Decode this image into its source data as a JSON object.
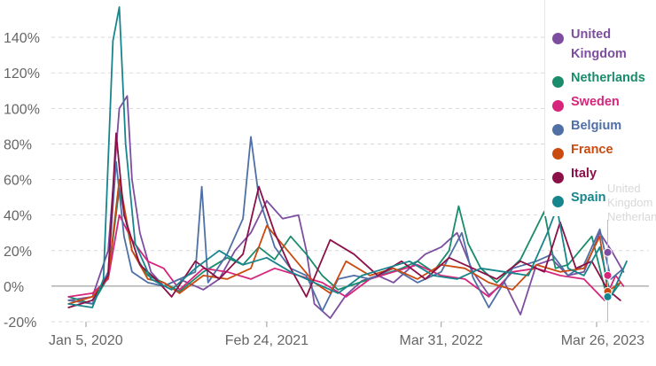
{
  "chart_data": {
    "type": "line",
    "x_ticks": [
      "Jan 5, 2020",
      "Feb 24, 2021",
      "Mar 31, 2022",
      "Mar 26, 2023"
    ],
    "y_ticks": [
      "-20%",
      "0%",
      "20%",
      "40%",
      "60%",
      "80%",
      "100%",
      "120%",
      "140%"
    ],
    "ylim": [
      -20,
      160
    ],
    "x_range": [
      "2019-12",
      "2023-06"
    ],
    "grid": "horizontal dashed",
    "legend_position": "top-right",
    "hover_label": "United Kingdom Netherlands",
    "series": [
      {
        "name": "United Kingdom",
        "color": "#7d4ea0",
        "x": [
          2019.9,
          2020.05,
          2020.15,
          2020.22,
          2020.27,
          2020.3,
          2020.35,
          2020.42,
          2020.5,
          2020.6,
          2020.75,
          2020.85,
          2020.95,
          2021.05,
          2021.15,
          2021.25,
          2021.35,
          2021.4,
          2021.45,
          2021.55,
          2021.65,
          2021.75,
          2021.85,
          2021.95,
          2022.05,
          2022.15,
          2022.25,
          2022.35,
          2022.45,
          2022.55,
          2022.65,
          2022.75,
          2022.85,
          2022.95,
          2023.05,
          2023.15,
          2023.25,
          2023.33,
          2023.4
        ],
        "values": [
          -8,
          -6,
          20,
          100,
          107,
          60,
          30,
          8,
          0,
          4,
          -2,
          4,
          20,
          30,
          48,
          38,
          40,
          20,
          -10,
          -18,
          -5,
          3,
          6,
          2,
          10,
          18,
          22,
          30,
          8,
          -5,
          2,
          -16,
          12,
          15,
          6,
          8,
          30,
          19,
          8
        ]
      },
      {
        "name": "Netherlands",
        "color": "#1a8c6b",
        "x": [
          2019.9,
          2020.05,
          2020.15,
          2020.22,
          2020.3,
          2020.4,
          2020.5,
          2020.6,
          2020.75,
          2020.9,
          2021.0,
          2021.1,
          2021.2,
          2021.3,
          2021.4,
          2021.5,
          2021.6,
          2021.8,
          2022.0,
          2022.1,
          2022.2,
          2022.3,
          2022.36,
          2022.42,
          2022.5,
          2022.6,
          2022.75,
          2022.9,
          2022.97,
          2023.05,
          2023.2,
          2023.3,
          2023.38
        ],
        "values": [
          -6,
          -10,
          5,
          55,
          20,
          6,
          2,
          -3,
          8,
          16,
          12,
          22,
          15,
          28,
          18,
          6,
          -2,
          4,
          10,
          14,
          8,
          20,
          45,
          24,
          10,
          2,
          15,
          42,
          10,
          12,
          28,
          -8,
          2
        ]
      },
      {
        "name": "Sweden",
        "color": "#d6267c",
        "x": [
          2019.9,
          2020.05,
          2020.15,
          2020.22,
          2020.3,
          2020.4,
          2020.5,
          2020.6,
          2020.75,
          2020.9,
          2021.05,
          2021.2,
          2021.35,
          2021.5,
          2021.65,
          2021.8,
          2021.95,
          2022.1,
          2022.25,
          2022.4,
          2022.55,
          2022.7,
          2022.85,
          2023.0,
          2023.15,
          2023.28,
          2023.35,
          2023.4
        ],
        "values": [
          -6,
          -4,
          4,
          40,
          26,
          14,
          10,
          -2,
          10,
          8,
          4,
          10,
          6,
          2,
          -6,
          4,
          8,
          12,
          6,
          4,
          -6,
          8,
          10,
          6,
          4,
          -8,
          6,
          0
        ]
      },
      {
        "name": "Belgium",
        "color": "#4f6fa5",
        "x": [
          2019.9,
          2020.05,
          2020.15,
          2020.2,
          2020.25,
          2020.3,
          2020.4,
          2020.5,
          2020.6,
          2020.7,
          2020.74,
          2020.78,
          2020.9,
          2021.0,
          2021.05,
          2021.1,
          2021.2,
          2021.3,
          2021.4,
          2021.5,
          2021.6,
          2021.7,
          2021.8,
          2021.95,
          2022.1,
          2022.25,
          2022.38,
          2022.45,
          2022.55,
          2022.7,
          2022.85,
          2022.95,
          2023.05,
          2023.15,
          2023.25,
          2023.32,
          2023.4
        ],
        "values": [
          -8,
          -10,
          8,
          70,
          28,
          8,
          2,
          0,
          4,
          8,
          56,
          2,
          18,
          38,
          84,
          50,
          22,
          10,
          6,
          -14,
          4,
          6,
          4,
          10,
          2,
          8,
          30,
          5,
          -12,
          10,
          14,
          18,
          6,
          12,
          32,
          4,
          10
        ]
      },
      {
        "name": "France",
        "color": "#c94b10",
        "x": [
          2019.9,
          2020.05,
          2020.15,
          2020.22,
          2020.3,
          2020.4,
          2020.5,
          2020.6,
          2020.75,
          2020.9,
          2021.05,
          2021.15,
          2021.3,
          2021.45,
          2021.55,
          2021.65,
          2021.8,
          2021.95,
          2022.1,
          2022.25,
          2022.4,
          2022.55,
          2022.7,
          2022.85,
          2023.0,
          2023.15,
          2023.25,
          2023.3,
          2023.38
        ],
        "values": [
          -10,
          -6,
          5,
          60,
          20,
          4,
          2,
          -4,
          6,
          4,
          10,
          34,
          18,
          2,
          -4,
          14,
          6,
          10,
          4,
          12,
          10,
          2,
          -2,
          12,
          8,
          10,
          28,
          -3,
          2
        ]
      },
      {
        "name": "Italy",
        "color": "#8b1048",
        "x": [
          2019.9,
          2020.05,
          2020.15,
          2020.2,
          2020.25,
          2020.35,
          2020.45,
          2020.55,
          2020.7,
          2020.85,
          2021.0,
          2021.1,
          2021.2,
          2021.3,
          2021.4,
          2021.55,
          2021.7,
          2021.85,
          2022.0,
          2022.15,
          2022.3,
          2022.45,
          2022.6,
          2022.75,
          2022.9,
          2023.0,
          2023.1,
          2023.2,
          2023.3,
          2023.38
        ],
        "values": [
          -12,
          -8,
          6,
          86,
          40,
          12,
          4,
          -6,
          14,
          4,
          18,
          56,
          30,
          10,
          -6,
          26,
          18,
          6,
          14,
          4,
          16,
          10,
          4,
          14,
          8,
          36,
          10,
          14,
          -2,
          -8
        ]
      },
      {
        "name": "Spain",
        "color": "#17858c",
        "x": [
          2019.9,
          2020.05,
          2020.12,
          2020.18,
          2020.22,
          2020.26,
          2020.32,
          2020.42,
          2020.55,
          2020.7,
          2020.85,
          2021.0,
          2021.15,
          2021.3,
          2021.45,
          2021.6,
          2021.75,
          2021.9,
          2022.05,
          2022.2,
          2022.35,
          2022.5,
          2022.65,
          2022.8,
          2022.92,
          2022.98,
          2023.05,
          2023.15,
          2023.25,
          2023.32,
          2023.42
        ],
        "values": [
          -10,
          -12,
          4,
          138,
          157,
          80,
          24,
          4,
          -2,
          10,
          20,
          12,
          16,
          8,
          2,
          -4,
          6,
          10,
          14,
          6,
          4,
          10,
          8,
          6,
          30,
          44,
          10,
          6,
          22,
          -6,
          14
        ]
      }
    ]
  }
}
